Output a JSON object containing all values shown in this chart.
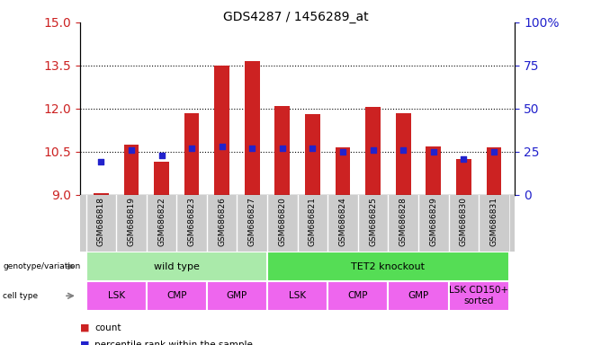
{
  "title": "GDS4287 / 1456289_at",
  "samples": [
    "GSM686818",
    "GSM686819",
    "GSM686822",
    "GSM686823",
    "GSM686826",
    "GSM686827",
    "GSM686820",
    "GSM686821",
    "GSM686824",
    "GSM686825",
    "GSM686828",
    "GSM686829",
    "GSM686830",
    "GSM686831"
  ],
  "bar_values": [
    9.05,
    10.75,
    10.15,
    11.85,
    13.5,
    13.65,
    12.1,
    11.8,
    10.65,
    12.05,
    11.85,
    10.7,
    10.25,
    10.65
  ],
  "dot_values": [
    19,
    26,
    23,
    27,
    28,
    27,
    27,
    27,
    25,
    26,
    26,
    25,
    21,
    25
  ],
  "ylim_left": [
    9,
    15
  ],
  "ylim_right": [
    0,
    100
  ],
  "yticks_left": [
    9,
    10.5,
    12,
    13.5,
    15
  ],
  "yticks_right": [
    0,
    25,
    50,
    75,
    100
  ],
  "bar_color": "#cc2222",
  "dot_color": "#2222cc",
  "bar_width": 0.5,
  "genotype_groups": [
    {
      "label": "wild type",
      "start": 0,
      "end": 6,
      "color": "#aaeaaa"
    },
    {
      "label": "TET2 knockout",
      "start": 6,
      "end": 14,
      "color": "#55dd55"
    }
  ],
  "cell_type_groups": [
    {
      "label": "LSK",
      "start": 0,
      "end": 2
    },
    {
      "label": "CMP",
      "start": 2,
      "end": 4
    },
    {
      "label": "GMP",
      "start": 4,
      "end": 6
    },
    {
      "label": "LSK",
      "start": 6,
      "end": 8
    },
    {
      "label": "CMP",
      "start": 8,
      "end": 10
    },
    {
      "label": "GMP",
      "start": 10,
      "end": 12
    },
    {
      "label": "LSK CD150+\nsorted",
      "start": 12,
      "end": 14
    }
  ],
  "cell_type_color": "#ee66ee",
  "legend_items": [
    {
      "label": "count",
      "color": "#cc2222"
    },
    {
      "label": "percentile rank within the sample",
      "color": "#2222cc"
    }
  ],
  "background_color": "#ffffff",
  "plot_bg_color": "#ffffff",
  "tick_label_color_left": "#cc2222",
  "tick_label_color_right": "#2222cc",
  "xtick_bg_color": "#cccccc"
}
